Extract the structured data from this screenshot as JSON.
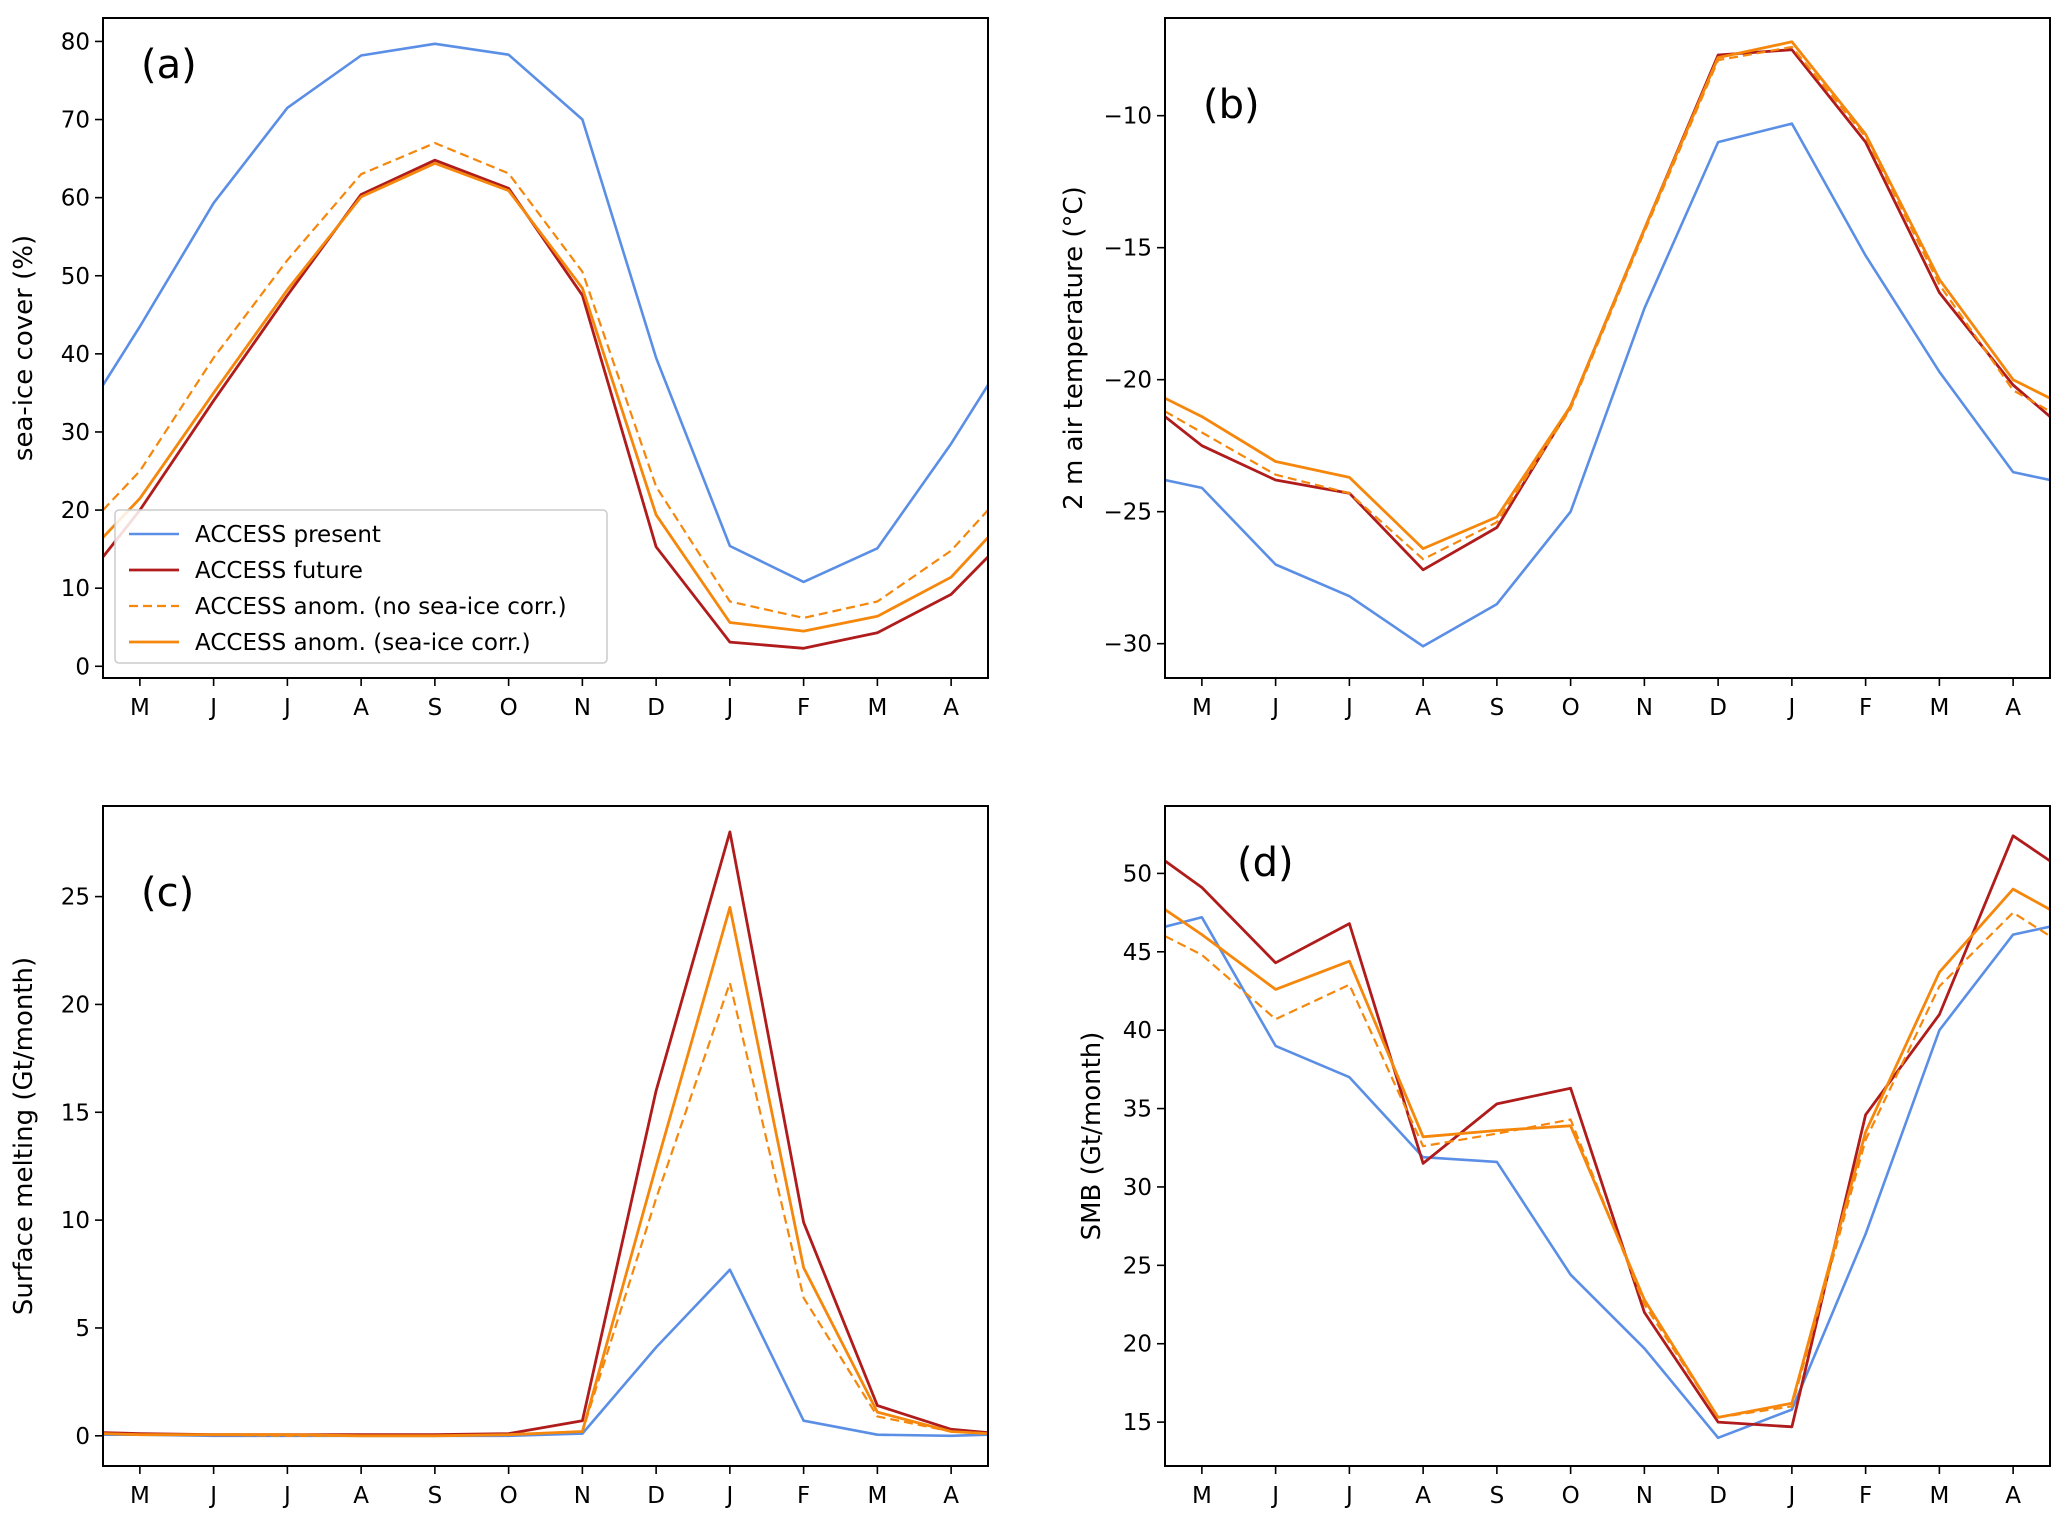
{
  "figure": {
    "months": [
      "M",
      "J",
      "J",
      "A",
      "S",
      "O",
      "N",
      "D",
      "J",
      "F",
      "M",
      "A"
    ],
    "colors": {
      "present": "#5b8fe6",
      "future": "#b01c1c",
      "anom_no_corr": "#f5870c",
      "anom_corr": "#f5870c"
    },
    "legend": [
      {
        "key": "present",
        "label": "ACCESS present",
        "dashed": false
      },
      {
        "key": "future",
        "label": "ACCESS future",
        "dashed": false
      },
      {
        "key": "anom_no_corr",
        "label": "ACCESS anom. (no sea-ice corr.)",
        "dashed": true
      },
      {
        "key": "anom_corr",
        "label": "ACCESS anom. (sea-ice corr.)",
        "dashed": false
      }
    ]
  },
  "chart_data": [
    {
      "panel": "(a)",
      "type": "line",
      "ylabel": "sea-ice cover (%)",
      "ylim": [
        -1.5,
        83
      ],
      "yticks": [
        0,
        10,
        20,
        30,
        40,
        50,
        60,
        70,
        80
      ],
      "x": [
        0,
        1,
        2,
        3,
        4,
        5,
        6,
        7,
        8,
        9,
        10,
        11
      ],
      "xlim": [
        -0.5,
        11.5
      ],
      "legend_location": "lower-left",
      "series": [
        {
          "key": "present",
          "name": "ACCESS present",
          "x": [
            -0.5,
            0,
            1,
            2,
            3,
            4,
            5,
            6,
            7,
            8,
            9,
            10,
            11,
            11.5
          ],
          "values": [
            36,
            43.5,
            59.3,
            71.5,
            78.2,
            79.7,
            78.3,
            70,
            39.5,
            15.4,
            10.8,
            15.1,
            28.5,
            36
          ]
        },
        {
          "key": "future",
          "name": "ACCESS future",
          "x": [
            -0.5,
            0,
            1,
            2,
            3,
            4,
            5,
            6,
            7,
            8,
            9,
            10,
            11,
            11.5
          ],
          "values": [
            14,
            20,
            34,
            47.5,
            60.4,
            64.8,
            61.2,
            47.5,
            15.3,
            3.1,
            2.3,
            4.3,
            9.2,
            14
          ]
        },
        {
          "key": "anom_no_corr",
          "name": "ACCESS anom. (no sea-ice corr.)",
          "x": [
            -0.5,
            0,
            1,
            2,
            3,
            4,
            5,
            6,
            7,
            8,
            9,
            10,
            11,
            11.5
          ],
          "values": [
            20,
            25,
            39.5,
            52,
            63,
            67,
            63.1,
            50.5,
            23,
            8.3,
            6.2,
            8.3,
            14.8,
            20
          ]
        },
        {
          "key": "anom_corr",
          "name": "ACCESS anom. (sea-ice corr.)",
          "x": [
            -0.5,
            0,
            1,
            2,
            3,
            4,
            5,
            6,
            7,
            8,
            9,
            10,
            11,
            11.5
          ],
          "values": [
            16.5,
            21.5,
            35,
            48.2,
            60.1,
            64.4,
            60.9,
            48.4,
            19.4,
            5.6,
            4.5,
            6.4,
            11.4,
            16.5
          ]
        }
      ]
    },
    {
      "panel": "(b)",
      "type": "line",
      "ylabel": "2 m air temperature (°C)",
      "ylim": [
        -31.3,
        -6.3
      ],
      "yticks": [
        -30,
        -25,
        -20,
        -15,
        -10
      ],
      "x": [
        0,
        1,
        2,
        3,
        4,
        5,
        6,
        7,
        8,
        9,
        10,
        11
      ],
      "xlim": [
        -0.5,
        11.5
      ],
      "series": [
        {
          "key": "present",
          "name": "ACCESS present",
          "x": [
            -0.5,
            0,
            1,
            2,
            3,
            4,
            5,
            6,
            7,
            8,
            9,
            10,
            11,
            11.5
          ],
          "values": [
            -23.8,
            -24.1,
            -27,
            -28.2,
            -30.1,
            -28.5,
            -25,
            -17.3,
            -11,
            -10.3,
            -15.3,
            -19.7,
            -23.5,
            -23.8
          ]
        },
        {
          "key": "future",
          "name": "ACCESS future",
          "x": [
            -0.5,
            0,
            1,
            2,
            3,
            4,
            5,
            6,
            7,
            8,
            9,
            10,
            11,
            11.5
          ],
          "values": [
            -21.4,
            -22.5,
            -23.8,
            -24.3,
            -27.2,
            -25.6,
            -21,
            -14.3,
            -7.7,
            -7.5,
            -11,
            -16.7,
            -20.2,
            -21.4
          ]
        },
        {
          "key": "anom_no_corr",
          "name": "ACCESS anom. (no sea-ice corr.)",
          "x": [
            -0.5,
            0,
            1,
            2,
            3,
            4,
            5,
            6,
            7,
            8,
            9,
            10,
            11,
            11.5
          ],
          "values": [
            -21.2,
            -22,
            -23.6,
            -24.3,
            -26.8,
            -25.4,
            -21.1,
            -14.4,
            -7.9,
            -7.4,
            -10.8,
            -16.4,
            -20.4,
            -21.2
          ]
        },
        {
          "key": "anom_corr",
          "name": "ACCESS anom. (sea-ice corr.)",
          "x": [
            -0.5,
            0,
            1,
            2,
            3,
            4,
            5,
            6,
            7,
            8,
            9,
            10,
            11,
            11.5
          ],
          "values": [
            -20.7,
            -21.4,
            -23.1,
            -23.7,
            -26.4,
            -25.2,
            -21,
            -14.3,
            -7.8,
            -7.2,
            -10.7,
            -16.2,
            -20,
            -20.7
          ]
        }
      ]
    },
    {
      "panel": "(c)",
      "type": "line",
      "ylabel": "Surface melting (Gt/month)",
      "ylim": [
        -1.4,
        29.2
      ],
      "yticks": [
        0,
        5,
        10,
        15,
        20,
        25
      ],
      "x": [
        0,
        1,
        2,
        3,
        4,
        5,
        6,
        7,
        8,
        9,
        10,
        11
      ],
      "xlim": [
        -0.5,
        11.5
      ],
      "series": [
        {
          "key": "present",
          "name": "ACCESS present",
          "x": [
            -0.5,
            0,
            1,
            2,
            3,
            4,
            5,
            6,
            7,
            8,
            9,
            10,
            11,
            11.5
          ],
          "values": [
            0.05,
            0.05,
            0,
            0,
            0,
            0,
            0,
            0.1,
            4.1,
            7.7,
            0.7,
            0.05,
            0,
            0.05
          ]
        },
        {
          "key": "future",
          "name": "ACCESS future",
          "x": [
            -0.5,
            0,
            1,
            2,
            3,
            4,
            5,
            6,
            7,
            8,
            9,
            10,
            11,
            11.5
          ],
          "values": [
            0.15,
            0.1,
            0.05,
            0.05,
            0.05,
            0.05,
            0.1,
            0.7,
            16,
            28,
            9.9,
            1.4,
            0.3,
            0.15
          ]
        },
        {
          "key": "anom_no_corr",
          "name": "ACCESS anom. (no sea-ice corr.)",
          "x": [
            -0.5,
            0,
            1,
            2,
            3,
            4,
            5,
            6,
            7,
            8,
            9,
            10,
            11,
            11.5
          ],
          "values": [
            0.1,
            0.05,
            0.05,
            0,
            0,
            0,
            0.05,
            0.2,
            11,
            21,
            6.4,
            0.9,
            0.2,
            0.1
          ]
        },
        {
          "key": "anom_corr",
          "name": "ACCESS anom. (sea-ice corr.)",
          "x": [
            -0.5,
            0,
            1,
            2,
            3,
            4,
            5,
            6,
            7,
            8,
            9,
            10,
            11,
            11.5
          ],
          "values": [
            0.1,
            0.05,
            0.05,
            0.05,
            0,
            0,
            0.05,
            0.2,
            12.5,
            24.5,
            7.8,
            1.1,
            0.2,
            0.1
          ]
        }
      ]
    },
    {
      "panel": "(d)",
      "type": "line",
      "ylabel": "SMB (Gt/month)",
      "ylim": [
        12.2,
        54.3
      ],
      "yticks": [
        15,
        20,
        25,
        30,
        35,
        40,
        45,
        50
      ],
      "x": [
        0,
        1,
        2,
        3,
        4,
        5,
        6,
        7,
        8,
        9,
        10,
        11
      ],
      "xlim": [
        -0.5,
        11.5
      ],
      "series": [
        {
          "key": "present",
          "name": "ACCESS present",
          "x": [
            -0.5,
            0,
            1,
            2,
            3,
            4,
            5,
            6,
            7,
            8,
            9,
            10,
            11,
            11.5
          ],
          "values": [
            46.6,
            47.2,
            39,
            37,
            31.9,
            31.6,
            24.4,
            19.7,
            14,
            15.8,
            27,
            40,
            46.1,
            46.6
          ]
        },
        {
          "key": "future",
          "name": "ACCESS future",
          "x": [
            -0.5,
            0,
            1,
            2,
            3,
            4,
            5,
            6,
            7,
            8,
            9,
            10,
            11,
            11.5
          ],
          "values": [
            50.8,
            49.1,
            44.3,
            46.8,
            31.5,
            35.3,
            36.3,
            22,
            15,
            14.7,
            34.6,
            41,
            52.4,
            50.8
          ]
        },
        {
          "key": "anom_no_corr",
          "name": "ACCESS anom. (no sea-ice corr.)",
          "x": [
            -0.5,
            0,
            1,
            2,
            3,
            4,
            5,
            6,
            7,
            8,
            9,
            10,
            11,
            11.5
          ],
          "values": [
            46,
            44.8,
            40.7,
            42.9,
            32.6,
            33.4,
            34.3,
            22.5,
            15.3,
            16,
            33,
            42.8,
            47.5,
            46
          ]
        },
        {
          "key": "anom_corr",
          "name": "ACCESS anom. (sea-ice corr.)",
          "x": [
            -0.5,
            0,
            1,
            2,
            3,
            4,
            5,
            6,
            7,
            8,
            9,
            10,
            11,
            11.5
          ],
          "values": [
            47.7,
            46.1,
            42.6,
            44.4,
            33.2,
            33.6,
            33.9,
            22.8,
            15.3,
            16.2,
            33.5,
            43.7,
            49,
            47.7
          ]
        }
      ]
    }
  ]
}
